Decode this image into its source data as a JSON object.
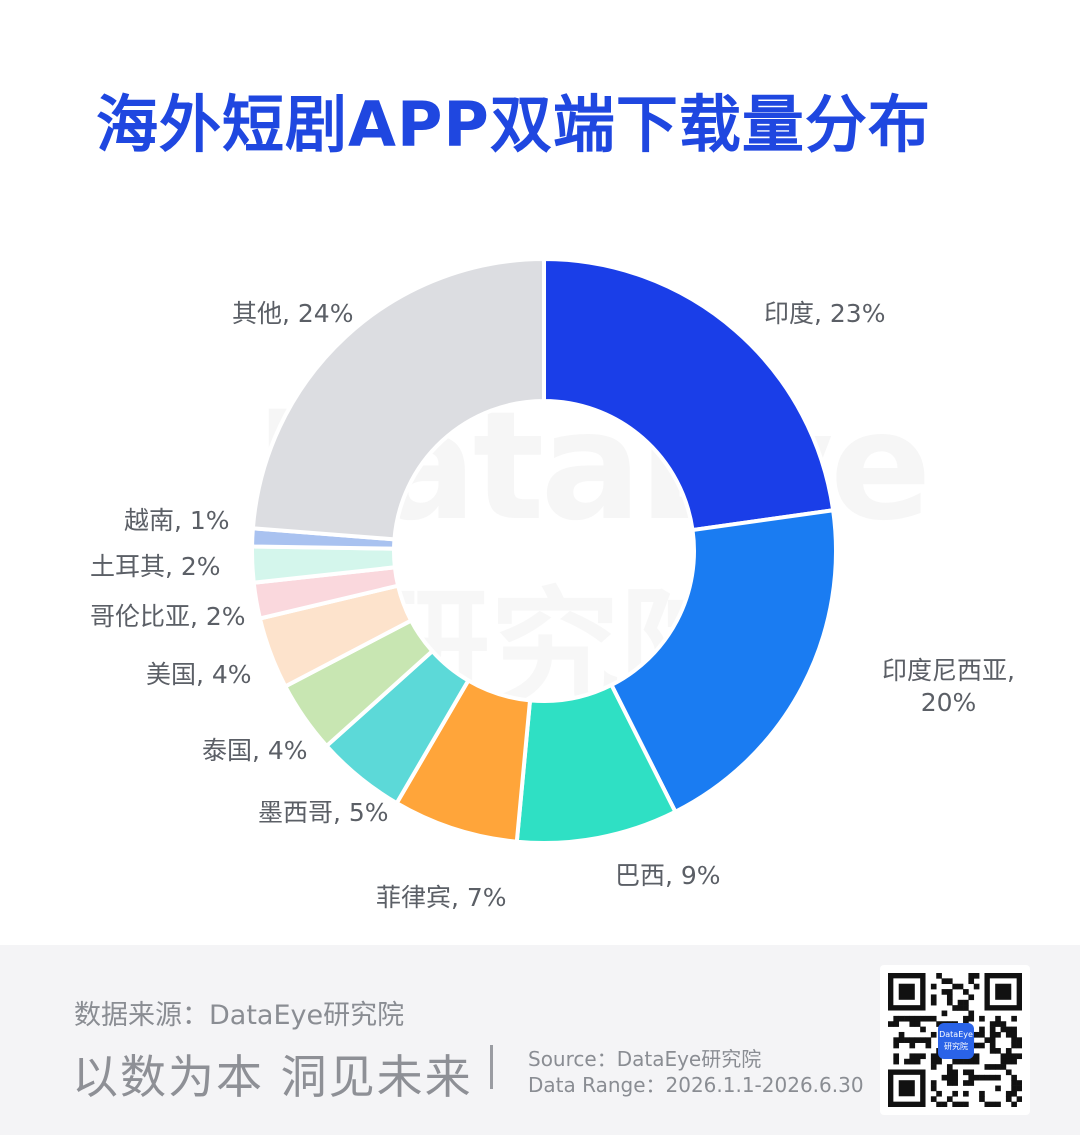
{
  "title": "海外短剧APP双端下载量分布",
  "chart_data": {
    "type": "pie",
    "donut": true,
    "slices": [
      {
        "label": "印度",
        "value": 23,
        "display": "印度, 23%",
        "color": "#1a3ee8"
      },
      {
        "label": "印度尼西亚",
        "value": 20,
        "display_line1": "印度尼西亚,",
        "display_line2": "20%",
        "color": "#1a7cf2"
      },
      {
        "label": "巴西",
        "value": 9,
        "display": "巴西, 9%",
        "color": "#2fe0c4"
      },
      {
        "label": "菲律宾",
        "value": 7,
        "display": "菲律宾, 7%",
        "color": "#ffa53a"
      },
      {
        "label": "墨西哥",
        "value": 5,
        "display": "墨西哥, 5%",
        "color": "#5cd9d8"
      },
      {
        "label": "泰国",
        "value": 4,
        "display": "泰国, 4%",
        "color": "#c8e6b2"
      },
      {
        "label": "美国",
        "value": 4,
        "display": "美国, 4%",
        "color": "#fde3cc"
      },
      {
        "label": "哥伦比亚",
        "value": 2,
        "display": "哥伦比亚, 2%",
        "color": "#fad8dd"
      },
      {
        "label": "土耳其",
        "value": 2,
        "display": "土耳其, 2%",
        "color": "#d4f6ec"
      },
      {
        "label": "越南",
        "value": 1,
        "display": "越南, 1%",
        "color": "#a9c2f0"
      },
      {
        "label": "其他",
        "value": 24,
        "display": "其他, 24%",
        "color": "#dcdde1"
      }
    ]
  },
  "watermark": {
    "line1": "DataEye",
    "line2": "研究院"
  },
  "footer": {
    "source": "数据来源：DataEye研究院",
    "slogan": "以数为本 洞见未来",
    "source_en": "Source：DataEye研究院",
    "date_range": "Data Range：2026.1.1-2026.6.30",
    "qr_logo_line1": "DataEye",
    "qr_logo_line2": "研究院"
  }
}
